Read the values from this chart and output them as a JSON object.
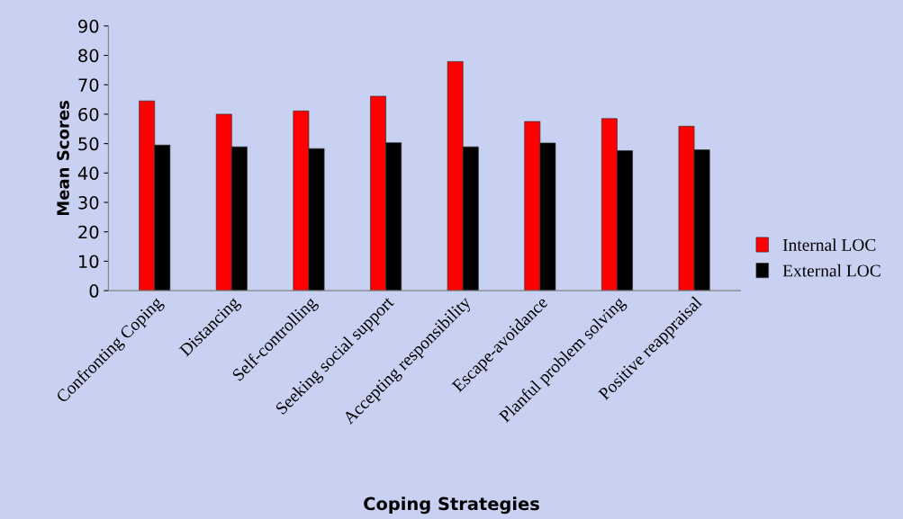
{
  "chart_data": {
    "type": "bar",
    "xlabel": "Coping Strategies",
    "ylabel": "Mean Scores",
    "categories": [
      "Confronting Coping",
      "Distancing",
      "Self-controlling",
      "Seeking social support",
      "Accepting responsibility",
      "Escape-avoidance",
      "Planful problem solving",
      "Positive reappraisal"
    ],
    "series": [
      {
        "name": "Internal LOC",
        "color": "#ff0000",
        "values": [
          64.5,
          60.0,
          61.1,
          66.1,
          77.9,
          57.5,
          58.5,
          55.9
        ]
      },
      {
        "name": "External LOC",
        "color": "#000000",
        "values": [
          49.5,
          48.9,
          48.3,
          50.3,
          48.9,
          50.2,
          47.6,
          47.9
        ]
      }
    ],
    "ylim": [
      0,
      90
    ],
    "yticks": [
      0,
      10,
      20,
      30,
      40,
      50,
      60,
      70,
      80,
      90
    ],
    "grid": false,
    "legend": "right"
  }
}
